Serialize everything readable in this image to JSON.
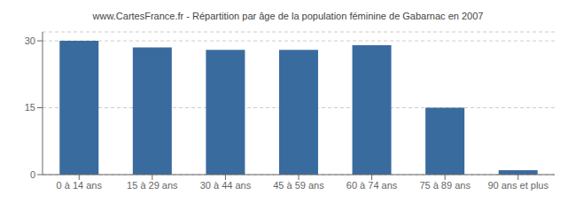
{
  "chart_data": {
    "type": "bar",
    "title": "www.CartesFrance.fr - Répartition par âge de la population féminine de Gabarnac en 2007",
    "categories": [
      "0 à 14 ans",
      "15 à 29 ans",
      "30 à 44 ans",
      "45 à 59 ans",
      "60 à 74 ans",
      "75 à 89 ans",
      "90 ans et plus"
    ],
    "values": [
      30,
      28.5,
      28,
      28,
      29,
      15,
      1
    ],
    "color": "#3a6b9e",
    "ylim": [
      0,
      32
    ],
    "yticks": [
      0,
      15,
      30
    ],
    "grid": true
  }
}
